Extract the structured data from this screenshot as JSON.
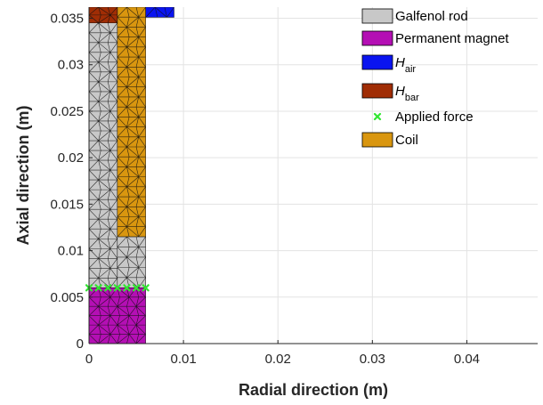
{
  "chart_data": {
    "type": "patch",
    "xlabel": "Radial direction (m)",
    "ylabel": "Axial direction (m)",
    "xlim": [
      0,
      0.0475
    ],
    "ylim": [
      0,
      0.0362
    ],
    "x_ticks": [
      0,
      0.01,
      0.02,
      0.03,
      0.04
    ],
    "x_tick_labels": [
      "0",
      "0.01",
      "0.02",
      "0.03",
      "0.04"
    ],
    "y_ticks": [
      0,
      0.005,
      0.01,
      0.015,
      0.02,
      0.025,
      0.03,
      0.035
    ],
    "y_tick_labels": [
      "0",
      "0.005",
      "0.01",
      "0.015",
      "0.02",
      "0.025",
      "0.03",
      "0.035"
    ],
    "grid": true,
    "legend_position": "top-right",
    "regions": [
      {
        "name": "Galfenol rod",
        "color": "#c8c8c8",
        "x0": 0,
        "x1": 0.003,
        "y0": 0.006,
        "y1": 0.0345
      },
      {
        "name": "Galfenol rod",
        "color": "#c8c8c8",
        "x0": 0.003,
        "x1": 0.006,
        "y0": 0.006,
        "y1": 0.0115
      },
      {
        "name": "Permanent magnet",
        "color": "#b40fb4",
        "x0": 0,
        "x1": 0.006,
        "y0": 0,
        "y1": 0.006
      },
      {
        "name": "Coil",
        "color": "#d9960f",
        "x0": 0.003,
        "x1": 0.006,
        "y0": 0.0115,
        "y1": 0.0362
      },
      {
        "name": "H_bar",
        "color": "#a02d05",
        "x0": 0,
        "x1": 0.003,
        "y0": 0.0345,
        "y1": 0.0362
      },
      {
        "name": "H_air",
        "color": "#0a14f0",
        "x0": 0.006,
        "x1": 0.009,
        "y0": 0.0351,
        "y1": 0.0362
      }
    ],
    "applied_force": {
      "color": "#32e632",
      "x": [
        0,
        0.001,
        0.002,
        0.003,
        0.004,
        0.005,
        0.006
      ],
      "y": [
        0.006,
        0.006,
        0.006,
        0.006,
        0.006,
        0.006,
        0.006
      ]
    },
    "legend": [
      {
        "label": "Galfenol rod",
        "kind": "patch",
        "color": "#c8c8c8"
      },
      {
        "label": "Permanent magnet",
        "kind": "patch",
        "color": "#b40fb4"
      },
      {
        "label": "H",
        "sub": "air",
        "kind": "patch",
        "color": "#0a14f0"
      },
      {
        "label": "H",
        "sub": "bar",
        "kind": "patch",
        "color": "#a02d05"
      },
      {
        "label": "Applied force",
        "kind": "marker",
        "color": "#32e632"
      },
      {
        "label": "Coil",
        "kind": "patch",
        "color": "#d9960f"
      }
    ]
  }
}
